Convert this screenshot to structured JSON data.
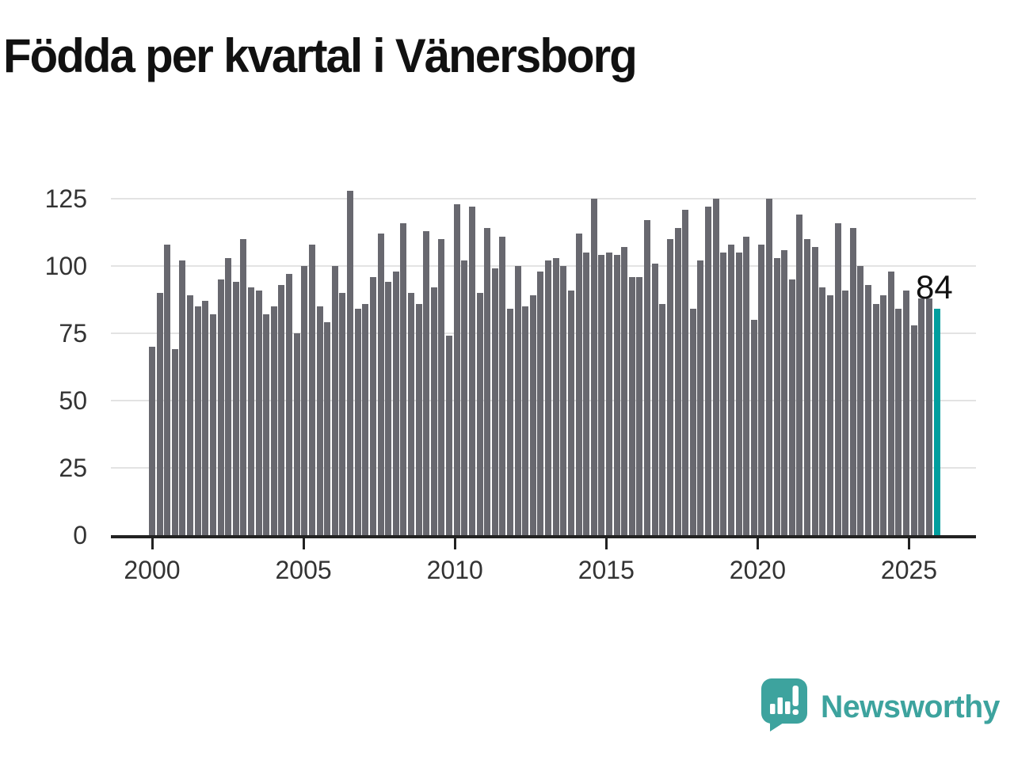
{
  "title": "Födda per kvartal i Vänersborg",
  "colors": {
    "bar": "#68686f",
    "highlight": "#009e9e",
    "grid": "#e3e3e3",
    "axis": "#222222",
    "tick_label": "#333333",
    "title": "#111111",
    "logo_teal": "#3da39e"
  },
  "logo": {
    "text": "Newsworthy",
    "icon": "speech-bubble-bar-chart"
  },
  "chart_data": {
    "type": "bar",
    "title": "Födda per kvartal i Vänersborg",
    "xlabel": "",
    "ylabel": "",
    "x_start": "2000Q1",
    "x_end": "2025Q4",
    "y_ticks": [
      0,
      25,
      50,
      75,
      100,
      125
    ],
    "ylim": [
      0,
      132
    ],
    "x_tick_years": [
      "2000",
      "2005",
      "2010",
      "2015",
      "2020",
      "2025"
    ],
    "grid": true,
    "legend": false,
    "highlight": {
      "quarter": "2025Q4",
      "value": 84,
      "label": "84"
    },
    "series_by_year": [
      {
        "year": "2000",
        "values": [
          70,
          90,
          108,
          69
        ]
      },
      {
        "year": "2001",
        "values": [
          102,
          89,
          85,
          87
        ]
      },
      {
        "year": "2002",
        "values": [
          82,
          95,
          103,
          94
        ]
      },
      {
        "year": "2003",
        "values": [
          110,
          92,
          91,
          82
        ]
      },
      {
        "year": "2004",
        "values": [
          85,
          93,
          97,
          75
        ]
      },
      {
        "year": "2005",
        "values": [
          100,
          108,
          85,
          79
        ]
      },
      {
        "year": "2006",
        "values": [
          100,
          90,
          128,
          84
        ]
      },
      {
        "year": "2007",
        "values": [
          86,
          96,
          112,
          94
        ]
      },
      {
        "year": "2008",
        "values": [
          98,
          116,
          90,
          86
        ]
      },
      {
        "year": "2009",
        "values": [
          113,
          92,
          110,
          74
        ]
      },
      {
        "year": "2010",
        "values": [
          123,
          102,
          122,
          90
        ]
      },
      {
        "year": "2011",
        "values": [
          114,
          99,
          111,
          84
        ]
      },
      {
        "year": "2012",
        "values": [
          100,
          85,
          89,
          98
        ]
      },
      {
        "year": "2013",
        "values": [
          102,
          103,
          100,
          91
        ]
      },
      {
        "year": "2014",
        "values": [
          112,
          105,
          125,
          104
        ]
      },
      {
        "year": "2015",
        "values": [
          105,
          104,
          107,
          96
        ]
      },
      {
        "year": "2016",
        "values": [
          96,
          117,
          101,
          86
        ]
      },
      {
        "year": "2017",
        "values": [
          110,
          114,
          121,
          84
        ]
      },
      {
        "year": "2018",
        "values": [
          102,
          122,
          125,
          105
        ]
      },
      {
        "year": "2019",
        "values": [
          108,
          105,
          111,
          80
        ]
      },
      {
        "year": "2020",
        "values": [
          108,
          125,
          103,
          106
        ]
      },
      {
        "year": "2021",
        "values": [
          95,
          119,
          110,
          107
        ]
      },
      {
        "year": "2022",
        "values": [
          92,
          89,
          116,
          91
        ]
      },
      {
        "year": "2023",
        "values": [
          114,
          100,
          93,
          86
        ]
      },
      {
        "year": "2024",
        "values": [
          89,
          98,
          84,
          91
        ]
      },
      {
        "year": "2025",
        "values": [
          78,
          88,
          88,
          84
        ]
      }
    ]
  }
}
